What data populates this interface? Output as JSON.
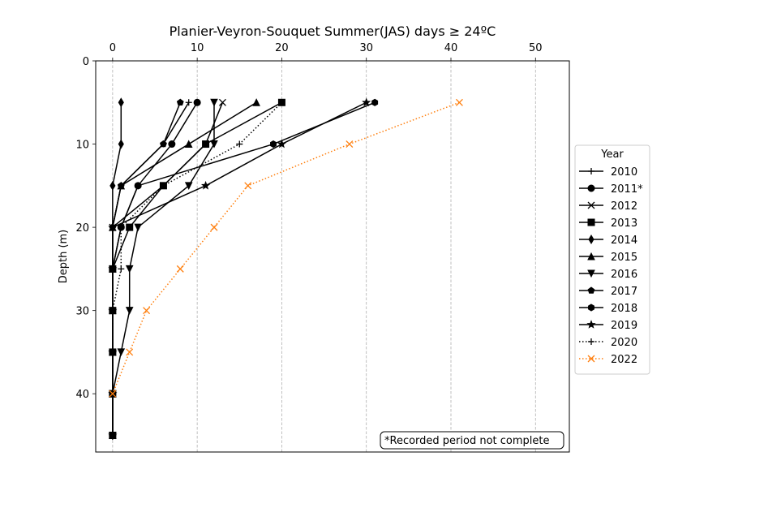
{
  "chart_data": {
    "type": "line",
    "title": "Planier-Veyron-Souquet Summer(JAS) days ≥ 24ºC",
    "xlabel": "",
    "ylabel": "Depth (m)",
    "xlim": [
      -2,
      54
    ],
    "ylim": [
      47,
      0
    ],
    "x_axis_position": "top",
    "y_inverted": true,
    "x_ticks": [
      0,
      10,
      20,
      30,
      40,
      50
    ],
    "y_ticks": [
      0,
      10,
      20,
      30,
      40
    ],
    "grid": "x-dashed",
    "legend": {
      "title": "Year",
      "placement": "right-outside"
    },
    "note": "*Recorded period not complete",
    "depths": [
      5,
      10,
      15,
      20,
      25,
      30,
      35,
      40,
      45
    ],
    "series": [
      {
        "name": "2010",
        "marker": "plus",
        "line": "solid",
        "color": "#000000",
        "x": [
          9,
          6,
          1,
          0,
          0,
          0,
          0,
          0,
          0
        ]
      },
      {
        "name": "2011*",
        "marker": "circle",
        "line": "solid",
        "color": "#000000",
        "x": [
          10,
          7,
          3,
          1,
          0,
          0,
          0,
          0,
          0
        ]
      },
      {
        "name": "2012",
        "marker": "x",
        "line": "solid",
        "color": "#000000",
        "x": [
          13,
          11,
          6,
          0,
          0,
          0,
          0,
          0,
          0
        ]
      },
      {
        "name": "2013",
        "marker": "square",
        "line": "solid",
        "color": "#000000",
        "x": [
          20,
          11,
          6,
          2,
          0,
          0,
          0,
          0,
          0
        ]
      },
      {
        "name": "2014",
        "marker": "thin_diamond",
        "line": "solid",
        "color": "#000000",
        "x": [
          1,
          1,
          0,
          0,
          0,
          0,
          0,
          0,
          0
        ]
      },
      {
        "name": "2015",
        "marker": "triangle_up",
        "line": "solid",
        "color": "#000000",
        "x": [
          17,
          9,
          1,
          0,
          0,
          0,
          0,
          0,
          0
        ]
      },
      {
        "name": "2016",
        "marker": "triangle_down",
        "line": "solid",
        "color": "#000000",
        "x": [
          12,
          12,
          9,
          3,
          2,
          2,
          1,
          0,
          0
        ]
      },
      {
        "name": "2017",
        "marker": "pentagon",
        "line": "solid",
        "color": "#000000",
        "x": [
          8,
          6,
          1,
          0,
          0,
          0,
          0,
          0,
          0
        ]
      },
      {
        "name": "2018",
        "marker": "hexagon",
        "line": "solid",
        "color": "#000000",
        "x": [
          31,
          19,
          3,
          1,
          0,
          0,
          0,
          0,
          0
        ]
      },
      {
        "name": "2019",
        "marker": "star",
        "line": "solid",
        "color": "#000000",
        "x": [
          30,
          20,
          11,
          0,
          0,
          0,
          0,
          0,
          0
        ]
      },
      {
        "name": "2020",
        "marker": "plus",
        "line": "dotted",
        "color": "#000000",
        "x": [
          20,
          15,
          6,
          1,
          1,
          0,
          0,
          0,
          0
        ]
      },
      {
        "name": "2022",
        "marker": "x",
        "line": "dotted",
        "color": "#ff7f0e",
        "x": [
          41,
          28,
          16,
          12,
          8,
          4,
          2,
          0,
          null
        ]
      }
    ]
  }
}
